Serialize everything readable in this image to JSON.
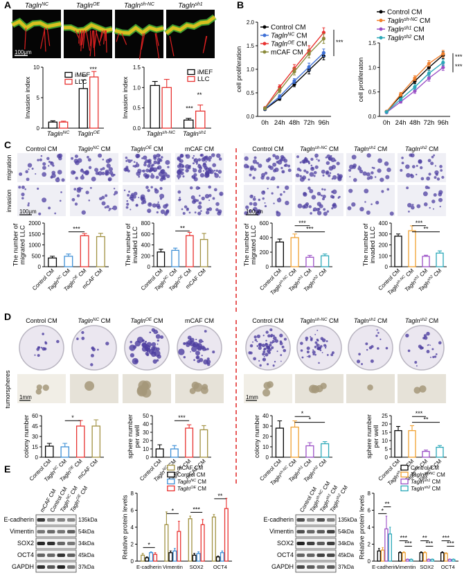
{
  "panel_labels": [
    "A",
    "B",
    "C",
    "D",
    "E"
  ],
  "a_images": {
    "labels": [
      [
        "Tagln",
        "NC"
      ],
      [
        "Tagln",
        "OE"
      ],
      [
        "Tagln",
        "sh-NC"
      ],
      [
        "Tagln",
        "sh1"
      ]
    ],
    "scale_bar": "100μm"
  },
  "c_images": {
    "columns": [
      "Control CM",
      [
        "Tagln",
        "NC",
        " CM"
      ],
      [
        "Tagln",
        "OE",
        " CM"
      ],
      "mCAF CM",
      "Control CM",
      [
        "Tagln",
        "sh-NC",
        " CM"
      ],
      [
        "Tagln",
        "sh1",
        " CM"
      ],
      [
        "Tagln",
        "sh2",
        " CM"
      ]
    ],
    "rows": [
      "migration",
      "invasion"
    ],
    "scale_bars": [
      "100μm",
      "100μm"
    ]
  },
  "d_images": {
    "columns": [
      "Control CM",
      [
        "Tagln",
        "NC",
        " CM"
      ],
      [
        "Tagln",
        "OE",
        " CM"
      ],
      "mCAF CM",
      "Control CM",
      [
        "Tagln",
        "sh-NC",
        " CM"
      ],
      [
        "Tagln",
        "sh1",
        " CM"
      ],
      [
        "Tagln",
        "sh2",
        " CM"
      ]
    ],
    "row_label": "tumorspheres",
    "scale_bars": [
      "1mm",
      "1mm"
    ]
  },
  "e_blots": [
    {
      "lanes": [
        "mCAF CM",
        "Control CM",
        [
          "Tagln",
          "NC",
          " CM"
        ],
        [
          "Tagln",
          "OE",
          " CM"
        ]
      ],
      "proteins": [
        "E-cadherin",
        "Vimentin",
        "SOX2",
        "OCT4",
        "GAPDH"
      ],
      "sizes": [
        "135kDa",
        "54kDa",
        "34kDa",
        "45kDa",
        "37kDa"
      ]
    },
    {
      "lanes": [
        "Control CM",
        [
          "Tagln",
          "sh-NC",
          " CM"
        ],
        [
          "Tagln",
          "sh1",
          " CM"
        ],
        [
          "Tagln",
          "sh2",
          " CM"
        ]
      ],
      "proteins": [
        "E-cadherin",
        "Vimentin",
        "SOX2",
        "OCT4",
        "GAPDH"
      ],
      "sizes": [
        "135kDa",
        "54kDa",
        "34kDa",
        "45kDa",
        "37kDa"
      ]
    }
  ],
  "chart_data": [
    {
      "type": "bar",
      "ylabel": [
        "Invasion index"
      ],
      "categories": [
        [
          "Tagln",
          "NC"
        ],
        [
          "Tagln",
          "OE"
        ]
      ],
      "series": [
        {
          "name": "iMEF",
          "color": "#000000",
          "values": [
            1.0,
            6.5
          ],
          "errors": [
            0.2,
            1.4
          ]
        },
        {
          "name": "LLC",
          "color": "#e8312f",
          "values": [
            1.0,
            8.4
          ],
          "errors": [
            0.15,
            0.9
          ]
        }
      ],
      "ylim": [
        0,
        10
      ],
      "yticks": [
        0,
        5,
        10
      ],
      "annotations": [
        "**",
        "***"
      ],
      "legend": "upper left"
    },
    {
      "type": "bar",
      "ylabel": [
        "Invasion index"
      ],
      "categories": [
        [
          "Tagln",
          "sh-NC"
        ],
        [
          "Tagln",
          "sh1"
        ]
      ],
      "series": [
        {
          "name": "iMEF",
          "color": "#000000",
          "values": [
            1.05,
            0.2
          ],
          "errors": [
            0.1,
            0.04
          ]
        },
        {
          "name": "LLC",
          "color": "#e8312f",
          "values": [
            1.0,
            0.42
          ],
          "errors": [
            0.2,
            0.15
          ]
        }
      ],
      "ylim": [
        0,
        1.5
      ],
      "yticks": [
        {
          "value": 0,
          "label": "0.0"
        },
        {
          "value": 0.5,
          "label": "0.5"
        },
        {
          "value": 1,
          "label": "1.0"
        },
        {
          "value": 1.5,
          "label": "1.5"
        }
      ],
      "annotations": [
        "***",
        "**"
      ],
      "legend": "upper right"
    },
    {
      "type": "line",
      "ylabel": [
        "cell proliferation"
      ],
      "categories": [
        "0h",
        "24h",
        "48h",
        "72h",
        "96h"
      ],
      "series": [
        {
          "name": "Control CM",
          "color": "#000000",
          "values": [
            0.15,
            0.38,
            0.68,
            0.98,
            1.28
          ],
          "errors": [
            0.02,
            0.04,
            0.05,
            0.08,
            0.08
          ]
        },
        {
          "name": [
            "Tagln",
            "NC",
            " CM"
          ],
          "color": "#3d6fd6",
          "values": [
            0.16,
            0.42,
            0.75,
            1.05,
            1.35
          ],
          "errors": [
            0.02,
            0.04,
            0.05,
            0.08,
            0.08
          ]
        },
        {
          "name": [
            "Tagln",
            "OE",
            " CM"
          ],
          "color": "#e8312f",
          "values": [
            0.18,
            0.62,
            1.02,
            1.4,
            1.78
          ],
          "errors": [
            0.02,
            0.05,
            0.08,
            0.1,
            0.1
          ]
        },
        {
          "name": "mCAF CM",
          "color": "#8a8a3a",
          "values": [
            0.17,
            0.55,
            0.95,
            1.33,
            1.65
          ],
          "errors": [
            0.02,
            0.05,
            0.07,
            0.09,
            0.1
          ]
        }
      ],
      "ylim": [
        0,
        2
      ],
      "yticks": [
        {
          "value": 0,
          "label": "0.0"
        },
        {
          "value": 0.5,
          "label": "0.5"
        },
        {
          "value": 1,
          "label": "1.0"
        },
        {
          "value": 1.5,
          "label": "1.5"
        },
        {
          "value": 2,
          "label": "2.0"
        }
      ],
      "annotations": [
        "***"
      ],
      "legend": "upper left"
    },
    {
      "type": "line",
      "ylabel": [
        "cell proliferaton"
      ],
      "categories": [
        "0h",
        "24h",
        "48h",
        "72h",
        "96h"
      ],
      "series": [
        {
          "name": "Control CM",
          "color": "#000000",
          "values": [
            0.1,
            0.42,
            0.72,
            1.0,
            1.25
          ],
          "errors": [
            0.02,
            0.04,
            0.05,
            0.06,
            0.07
          ]
        },
        {
          "name": [
            "Tagln",
            "sh-NC",
            " CM"
          ],
          "color": "#f07f2c",
          "values": [
            0.1,
            0.45,
            0.78,
            1.08,
            1.28
          ],
          "errors": [
            0.02,
            0.04,
            0.05,
            0.06,
            0.07
          ]
        },
        {
          "name": [
            "Tagln",
            "sh1",
            " CM"
          ],
          "color": "#9b4fc6",
          "values": [
            0.08,
            0.3,
            0.52,
            0.78,
            1.0
          ],
          "errors": [
            0.02,
            0.03,
            0.05,
            0.06,
            0.06
          ]
        },
        {
          "name": [
            "Tagln",
            "sh2",
            " CM"
          ],
          "color": "#2aa8b8",
          "values": [
            0.09,
            0.35,
            0.6,
            0.88,
            1.1
          ],
          "errors": [
            0.02,
            0.03,
            0.05,
            0.06,
            0.06
          ]
        }
      ],
      "ylim": [
        0,
        1.5
      ],
      "yticks": [
        {
          "value": 0,
          "label": "0.0"
        },
        {
          "value": 0.5,
          "label": "0.5"
        },
        {
          "value": 1,
          "label": "1.0"
        },
        {
          "value": 1.5,
          "label": "1.5"
        }
      ],
      "annotations": [
        "***",
        "***"
      ],
      "legend": "top"
    },
    {
      "type": "bar",
      "ylabel": [
        "The number of",
        "migrated LLC"
      ],
      "categories": [
        "Control CM",
        [
          "Tagln",
          "NC",
          " CM"
        ],
        [
          "Tagln",
          "OE",
          " CM"
        ],
        "mCAF CM"
      ],
      "values": [
        400,
        480,
        1420,
        1380
      ],
      "errors": [
        80,
        100,
        100,
        150
      ],
      "colors": [
        "#000000",
        "#3d8fd6",
        "#e8312f",
        "#a09040"
      ],
      "ylim": [
        0,
        2000
      ],
      "yticks": [
        0,
        500,
        1000,
        1500,
        2000
      ],
      "annotations": [
        "***"
      ]
    },
    {
      "type": "bar",
      "ylabel": [
        "The number of",
        "invaded LLC"
      ],
      "categories": [
        "Control CM",
        [
          "Tagln",
          "NC",
          " CM"
        ],
        [
          "Tagln",
          "OE",
          " CM"
        ],
        "mCAF CM"
      ],
      "values": [
        270,
        300,
        570,
        500
      ],
      "errors": [
        50,
        40,
        60,
        110
      ],
      "colors": [
        "#000000",
        "#3d8fd6",
        "#e8312f",
        "#a09040"
      ],
      "ylim": [
        0,
        800
      ],
      "yticks": [
        0,
        200,
        400,
        600,
        800
      ],
      "annotations": [
        "**"
      ]
    },
    {
      "type": "bar",
      "ylabel": [
        "The number of",
        "migrated LLC"
      ],
      "categories": [
        "Control CM",
        [
          "Tagln",
          "sh-NC",
          " CM"
        ],
        [
          "Tagln",
          "sh1",
          " CM"
        ],
        [
          "Tagln",
          "sh2",
          " CM"
        ]
      ],
      "values": [
        340,
        400,
        130,
        150
      ],
      "errors": [
        40,
        50,
        25,
        25
      ],
      "colors": [
        "#000000",
        "#f0a030",
        "#9b4fc6",
        "#2aa8b8"
      ],
      "ylim": [
        0,
        600
      ],
      "yticks": [
        0,
        200,
        400,
        600
      ],
      "annotations": [
        "***",
        "***"
      ]
    },
    {
      "type": "bar",
      "ylabel": [
        "The number of",
        "invaded LLC"
      ],
      "categories": [
        "Control CM",
        [
          "Tagln",
          "sh-NC",
          " CM"
        ],
        [
          "Tagln",
          "sh1",
          " CM"
        ],
        [
          "Tagln",
          "sh2",
          " CM"
        ]
      ],
      "values": [
        280,
        330,
        95,
        125
      ],
      "errors": [
        20,
        45,
        10,
        20
      ],
      "colors": [
        "#000000",
        "#f0a030",
        "#9b4fc6",
        "#2aa8b8"
      ],
      "ylim": [
        0,
        400
      ],
      "yticks": [
        0,
        100,
        200,
        300,
        400
      ],
      "annotations": [
        "***",
        "**"
      ]
    },
    {
      "type": "bar",
      "ylabel": [
        "colony number"
      ],
      "categories": [
        "Control CM",
        [
          "Tagln",
          "NC",
          " CM"
        ],
        [
          "Tagln",
          "OE",
          " CM"
        ],
        "mCAF CM"
      ],
      "values": [
        16,
        15,
        45,
        45
      ],
      "errors": [
        4,
        5,
        8,
        9
      ],
      "colors": [
        "#000000",
        "#3d8fd6",
        "#e8312f",
        "#a09040"
      ],
      "ylim": [
        0,
        60
      ],
      "yticks": [
        0,
        15,
        30,
        45,
        60
      ],
      "annotations": [
        "*"
      ]
    },
    {
      "type": "bar",
      "ylabel": [
        "sphere number",
        "per well"
      ],
      "categories": [
        "Control CM",
        [
          "Tagln",
          "NC",
          " CM"
        ],
        [
          "Tagln",
          "OE",
          " CM"
        ],
        "mCAF CM"
      ],
      "values": [
        10,
        10,
        35,
        33
      ],
      "errors": [
        5,
        4,
        4,
        5
      ],
      "colors": [
        "#000000",
        "#3d8fd6",
        "#e8312f",
        "#a09040"
      ],
      "ylim": [
        0,
        50
      ],
      "yticks": [
        0,
        10,
        20,
        30,
        40,
        50
      ],
      "annotations": [
        "***"
      ]
    },
    {
      "type": "bar",
      "ylabel": [
        "colony number"
      ],
      "categories": [
        "Control CM",
        [
          "Tagln",
          "sh-NC",
          " CM"
        ],
        [
          "Tagln",
          "sh1",
          " CM"
        ],
        [
          "Tagln",
          "sh2",
          " CM"
        ]
      ],
      "values": [
        28,
        29,
        11,
        13
      ],
      "errors": [
        7,
        6,
        3,
        2
      ],
      "colors": [
        "#000000",
        "#f0a030",
        "#9b4fc6",
        "#2aa8b8"
      ],
      "ylim": [
        0,
        40
      ],
      "yticks": [
        0,
        10,
        20,
        30,
        40
      ],
      "annotations": [
        "*",
        "*"
      ]
    },
    {
      "type": "bar",
      "ylabel": [
        "sphere number",
        "per well"
      ],
      "categories": [
        "Control CM",
        [
          "Tagln",
          "sh-NC",
          " CM"
        ],
        [
          "Tagln",
          "sh1",
          " CM"
        ],
        [
          "Tagln",
          "sh2",
          " CM"
        ]
      ],
      "values": [
        16,
        16,
        3.5,
        6
      ],
      "errors": [
        2.5,
        3,
        0.8,
        1
      ],
      "colors": [
        "#000000",
        "#f0a030",
        "#9b4fc6",
        "#2aa8b8"
      ],
      "ylim": [
        0,
        25
      ],
      "yticks": [
        0,
        5,
        10,
        15,
        20,
        25
      ],
      "annotations": [
        "***",
        "**"
      ]
    },
    {
      "type": "bar",
      "ylabel": [
        "Relative protein levels"
      ],
      "categories": [
        "E-cadherin",
        "Vimentin",
        "SOX2",
        "OCT4"
      ],
      "series": [
        {
          "name": "mCAF CM",
          "color": "#a09040",
          "values": [
            0.7,
            4.3,
            5.0,
            5.2
          ],
          "errors": [
            0.2,
            1.5,
            0.3,
            0.3
          ]
        },
        {
          "name": "Control CM",
          "color": "#000000",
          "values": [
            0.4,
            1.0,
            0.7,
            0.5
          ],
          "errors": [
            0.1,
            0.2,
            0.2,
            0.1
          ]
        },
        {
          "name": [
            "Tagln",
            "NC",
            " CM"
          ],
          "color": "#3d8fd6",
          "values": [
            1.0,
            1.2,
            0.9,
            1.0
          ],
          "errors": [
            0.1,
            0.3,
            0.2,
            0.2
          ]
        },
        {
          "name": [
            "Tagln",
            "OE",
            " CM"
          ],
          "color": "#e8312f",
          "values": [
            0.8,
            3.5,
            4.3,
            6.2
          ],
          "errors": [
            0.2,
            1.2,
            0.6,
            1.2
          ]
        }
      ],
      "ylim": [
        0,
        8
      ],
      "yticks": [
        0,
        2,
        4,
        6,
        8
      ],
      "annotations": [
        "*",
        "*",
        "***",
        "**"
      ],
      "legend": "top"
    },
    {
      "type": "bar",
      "ylabel": [
        "Relative protein levels"
      ],
      "categories": [
        "E-cadherin",
        "Vimentin",
        "SOX2",
        "OCT4"
      ],
      "series": [
        {
          "name": "Control-CM",
          "color": "#000000",
          "values": [
            1.2,
            1.0,
            1.0,
            1.0
          ],
          "errors": [
            0.3,
            0.1,
            0.1,
            0.1
          ]
        },
        {
          "name": [
            "Tagln",
            "sh-NC",
            " CM"
          ],
          "color": "#f0a030",
          "values": [
            1.3,
            1.0,
            1.0,
            0.9
          ],
          "errors": [
            0.3,
            0.1,
            0.1,
            0.1
          ]
        },
        {
          "name": [
            "Tagln",
            "sh1",
            " CM"
          ],
          "color": "#9b4fc6",
          "values": [
            3.8,
            0.2,
            0.2,
            0.2
          ],
          "errors": [
            1.5,
            0.05,
            0.05,
            0.05
          ]
        },
        {
          "name": [
            "Tagln",
            "sh2",
            " CM"
          ],
          "color": "#2aa8b8",
          "values": [
            3.2,
            0.2,
            0.2,
            0.2
          ],
          "errors": [
            0.8,
            0.05,
            0.05,
            0.05
          ]
        }
      ],
      "ylim": [
        0,
        8
      ],
      "yticks": [
        0,
        2,
        4,
        6,
        8
      ],
      "annotations": [
        "*",
        "**",
        "***",
        "***",
        "**",
        "***",
        "***",
        "***"
      ],
      "legend": "top"
    }
  ]
}
